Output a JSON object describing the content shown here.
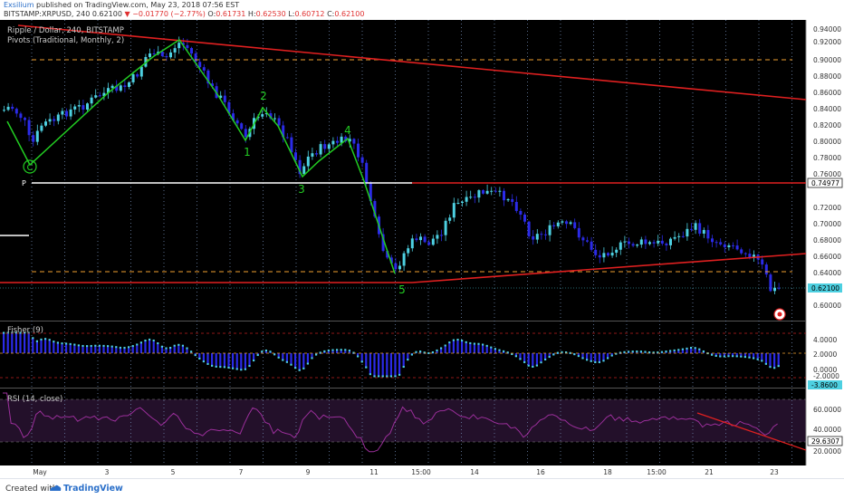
{
  "header": {
    "user": "Exsilium",
    "published_text": "published on TradingView.com, May 23, 2018 07:56 EST",
    "symbol": "BITSTAMP:XRPUSD, 240",
    "last": "0.62100",
    "change_arrow": "▼",
    "change": "−0.01770 (−2.77%)",
    "o_label": "O:",
    "o_value": "0.61731",
    "h_label": "H:",
    "h_value": "0.62530",
    "l_label": "L:",
    "l_value": "0.60712",
    "c_label": "C:",
    "c_value": "0.62100"
  },
  "main_pane": {
    "title": "Ripple / Dollar, 240, BITSTAMP",
    "indicator": "Pivots (Traditional, Monthly, 2)",
    "pivot_label": "P",
    "price_ticks": [
      "0.94000",
      "0.92000",
      "0.90000",
      "0.88000",
      "0.86000",
      "0.84000",
      "0.82000",
      "0.80000",
      "0.78000",
      "0.76000",
      "0.72000",
      "0.70000",
      "0.68000",
      "0.66000",
      "0.64000",
      "0.60000"
    ],
    "pivot_tag": "0.74977",
    "last_tag": "0.62100",
    "wave_labels": {
      "c": "C",
      "w1": "1",
      "w2": "2",
      "w3": "3",
      "w4": "4",
      "w5": "5"
    }
  },
  "fisher_pane": {
    "title": "Fisher (9)",
    "ticks": [
      "4.0000",
      "2.0000",
      "0.0000",
      "-2.0000"
    ],
    "value_tag": "-3.8600"
  },
  "rsi_pane": {
    "title": "RSI (14, close)",
    "ticks": [
      "60.0000",
      "40.0000",
      "20.0000"
    ],
    "value_tag": "29.6307"
  },
  "time_axis": {
    "labels": [
      "May",
      "3",
      "5",
      "7",
      "9",
      "11",
      "15:00",
      "14",
      "16",
      "18",
      "15:00",
      "21",
      "23"
    ]
  },
  "footer": {
    "created_with": "Created with",
    "brand": "TradingView"
  },
  "colors": {
    "bull": "#4dd0e1",
    "bear": "#2b2be8",
    "trendline": "#e02020",
    "wave": "#22cc22",
    "pivot_line": "#ffffff",
    "dashed_level": "#f0a030",
    "rsi_line": "#9b2f9b"
  },
  "chart_data": {
    "type": "candlestick",
    "y_range": [
      0.595,
      0.945
    ],
    "pivot": 0.74977,
    "last": 0.621,
    "fisher_last": -3.86,
    "rsi_last": 29.6307,
    "wave_points": [
      {
        "label": "C",
        "price": 0.78
      },
      {
        "label": "1",
        "price": 0.8
      },
      {
        "label": "2",
        "price": 0.845
      },
      {
        "label": "3",
        "price": 0.755
      },
      {
        "label": "4",
        "price": 0.81
      },
      {
        "label": "5",
        "price": 0.633
      }
    ]
  }
}
